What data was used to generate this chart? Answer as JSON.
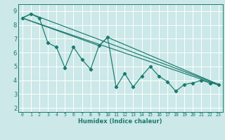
{
  "title": "",
  "xlabel": "Humidex (Indice chaleur)",
  "ylabel": "",
  "background_color": "#cce8e8",
  "grid_color": "#ffffff",
  "line_color": "#1a7a6e",
  "xlim": [
    -0.5,
    23.5
  ],
  "ylim": [
    1.7,
    9.5
  ],
  "xticks": [
    0,
    1,
    2,
    3,
    4,
    5,
    6,
    7,
    8,
    9,
    10,
    11,
    12,
    13,
    14,
    15,
    16,
    17,
    18,
    19,
    20,
    21,
    22,
    23
  ],
  "yticks": [
    2,
    3,
    4,
    5,
    6,
    7,
    8,
    9
  ],
  "line1_x": [
    0,
    1,
    2,
    3,
    4,
    5,
    6,
    7,
    8,
    9,
    10,
    11,
    12,
    13,
    14,
    15,
    16,
    17,
    18,
    19,
    20,
    21,
    22,
    23
  ],
  "line1_y": [
    8.5,
    8.8,
    8.5,
    6.7,
    6.4,
    4.9,
    6.4,
    5.5,
    4.8,
    6.5,
    7.1,
    3.5,
    4.5,
    3.5,
    4.3,
    5.0,
    4.3,
    3.9,
    3.2,
    3.7,
    3.8,
    4.0,
    3.8,
    3.7
  ],
  "line2_x": [
    0,
    1,
    23
  ],
  "line2_y": [
    8.5,
    8.8,
    3.7
  ],
  "line3_x": [
    0,
    9,
    10,
    23
  ],
  "line3_y": [
    8.5,
    6.5,
    7.1,
    3.7
  ],
  "line4_x": [
    0,
    23
  ],
  "line4_y": [
    8.5,
    3.65
  ],
  "xlabel_fontsize": 6.0,
  "xlabel_fontweight": "bold",
  "tick_fontsize_x": 4.8,
  "tick_fontsize_y": 6.0
}
